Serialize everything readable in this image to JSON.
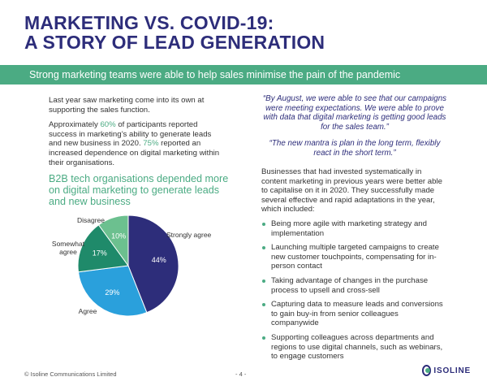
{
  "title": {
    "line1": "MARKETING VS. COVID-19:",
    "line2": "A STORY OF LEAD GENERATION"
  },
  "banner": "Strong marketing teams were able to help sales minimise the pain of the pandemic",
  "left": {
    "p1": "Last year saw marketing come into its own at supporting the sales function.",
    "p2_before": "Approximately ",
    "p2_pct1": "60%",
    "p2_mid": " of participants reported success in marketing’s ability to generate leads and new business in 2020. ",
    "p2_pct2": "75%",
    "p2_after": " reported an increased dependence on digital marketing within their organisations."
  },
  "chart_title": "B2B tech organisations depended more on digital marketing to generate leads and new business",
  "chart_data": {
    "type": "pie",
    "categories": [
      "Strongly agree",
      "Agree",
      "Somewhat agree",
      "Disagree"
    ],
    "values": [
      44,
      29,
      17,
      10
    ],
    "value_labels": [
      "44%",
      "29%",
      "17%",
      "10%"
    ],
    "category_labels": [
      "Strongly agree",
      "Agree",
      "Somewhat\nagree",
      "Disagree"
    ],
    "colors": [
      "#2d2d7a",
      "#2aa0dc",
      "#1f8a6a",
      "#6cc08f"
    ]
  },
  "quotes": {
    "q1": "“By August, we were able to see that our campaigns were meeting expectations. We were able to prove with data that digital marketing is getting good leads for the sales team.”",
    "q2": "“The new mantra is plan in the long term, flexibly react in the short term.”"
  },
  "right": {
    "intro": "Businesses that had invested systematically in content marketing in previous years were better able to capitalise on it in 2020. They successfully made several effective and rapid adaptations in the year, which included:",
    "bullets": [
      "Being more agile with marketing strategy and implementation",
      "Launching multiple targeted campaigns to create new customer touchpoints, compensating for in-person contact",
      "Taking advantage of changes in the purchase process to upsell and cross-sell",
      "Capturing data to measure leads and conversions to gain buy-in from senior colleagues companywide",
      "Supporting colleagues across departments and regions to use digital channels, such as webinars, to engage customers"
    ]
  },
  "footer": {
    "copyright": "© Isoline Communications Limited",
    "page": "- 4 -",
    "logo_text": "ISOLINE"
  }
}
